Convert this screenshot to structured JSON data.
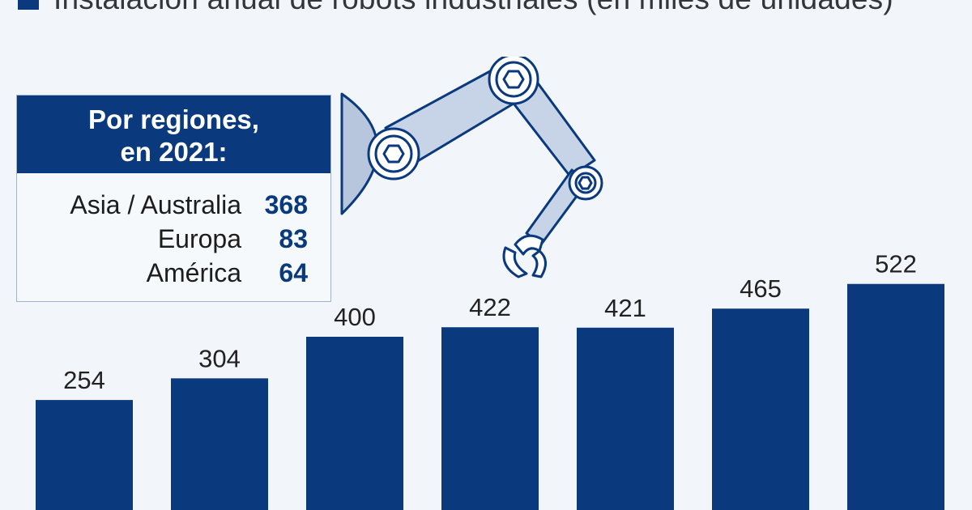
{
  "legend": {
    "label": "Instalación anual de robots industriales (en miles de unidades)",
    "color": "#0a3a7d"
  },
  "regions": {
    "title_line1": "Por regiones,",
    "title_line2": "en 2021:",
    "items": [
      {
        "name": "Asia / Australia",
        "value": "368"
      },
      {
        "name": "Europa",
        "value": "83"
      },
      {
        "name": "América",
        "value": "64"
      }
    ]
  },
  "illustration": {
    "icon": "robot-arm-icon"
  },
  "chart_data": {
    "type": "bar",
    "title": "Instalación anual de robots industriales (en miles de unidades)",
    "values": [
      254,
      304,
      400,
      422,
      421,
      465,
      522
    ],
    "bar_color": "#0a3a7d",
    "data_labels": true,
    "grid": false,
    "legend_position": "top-left"
  }
}
